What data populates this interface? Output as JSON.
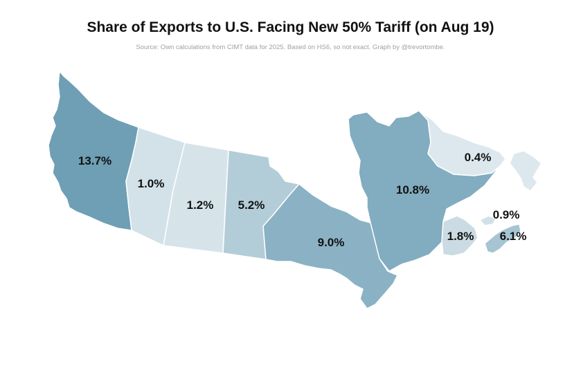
{
  "title": "Share of Exports to U.S. Facing New 50% Tariff (on Aug 19)",
  "subtitle": "Source: Own calculations from CIMT data for 2025. Based on HS6, so not exact. Graph by @trevortombe.",
  "regions": [
    {
      "id": "bc",
      "value_label": "13.7%",
      "value": 13.7,
      "color": "#6e9fb4"
    },
    {
      "id": "ab",
      "value_label": "1.0%",
      "value": 1.0,
      "color": "#d3e2e9"
    },
    {
      "id": "sk",
      "value_label": "1.2%",
      "value": 1.2,
      "color": "#d6e4ea"
    },
    {
      "id": "mb",
      "value_label": "5.2%",
      "value": 5.2,
      "color": "#b3cdd8"
    },
    {
      "id": "on",
      "value_label": "9.0%",
      "value": 9.0,
      "color": "#8ab2c4"
    },
    {
      "id": "qc",
      "value_label": "10.8%",
      "value": 10.8,
      "color": "#82acbf"
    },
    {
      "id": "nl",
      "value_label": "0.4%",
      "value": 0.4,
      "color": "#dde8ee"
    },
    {
      "id": "nb",
      "value_label": "1.8%",
      "value": 1.8,
      "color": "#cadbe3"
    },
    {
      "id": "pe",
      "value_label": "0.9%",
      "value": 0.9,
      "color": "#d2e1e8"
    },
    {
      "id": "ns",
      "value_label": "6.1%",
      "value": 6.1,
      "color": "#a6c4d1"
    }
  ]
}
